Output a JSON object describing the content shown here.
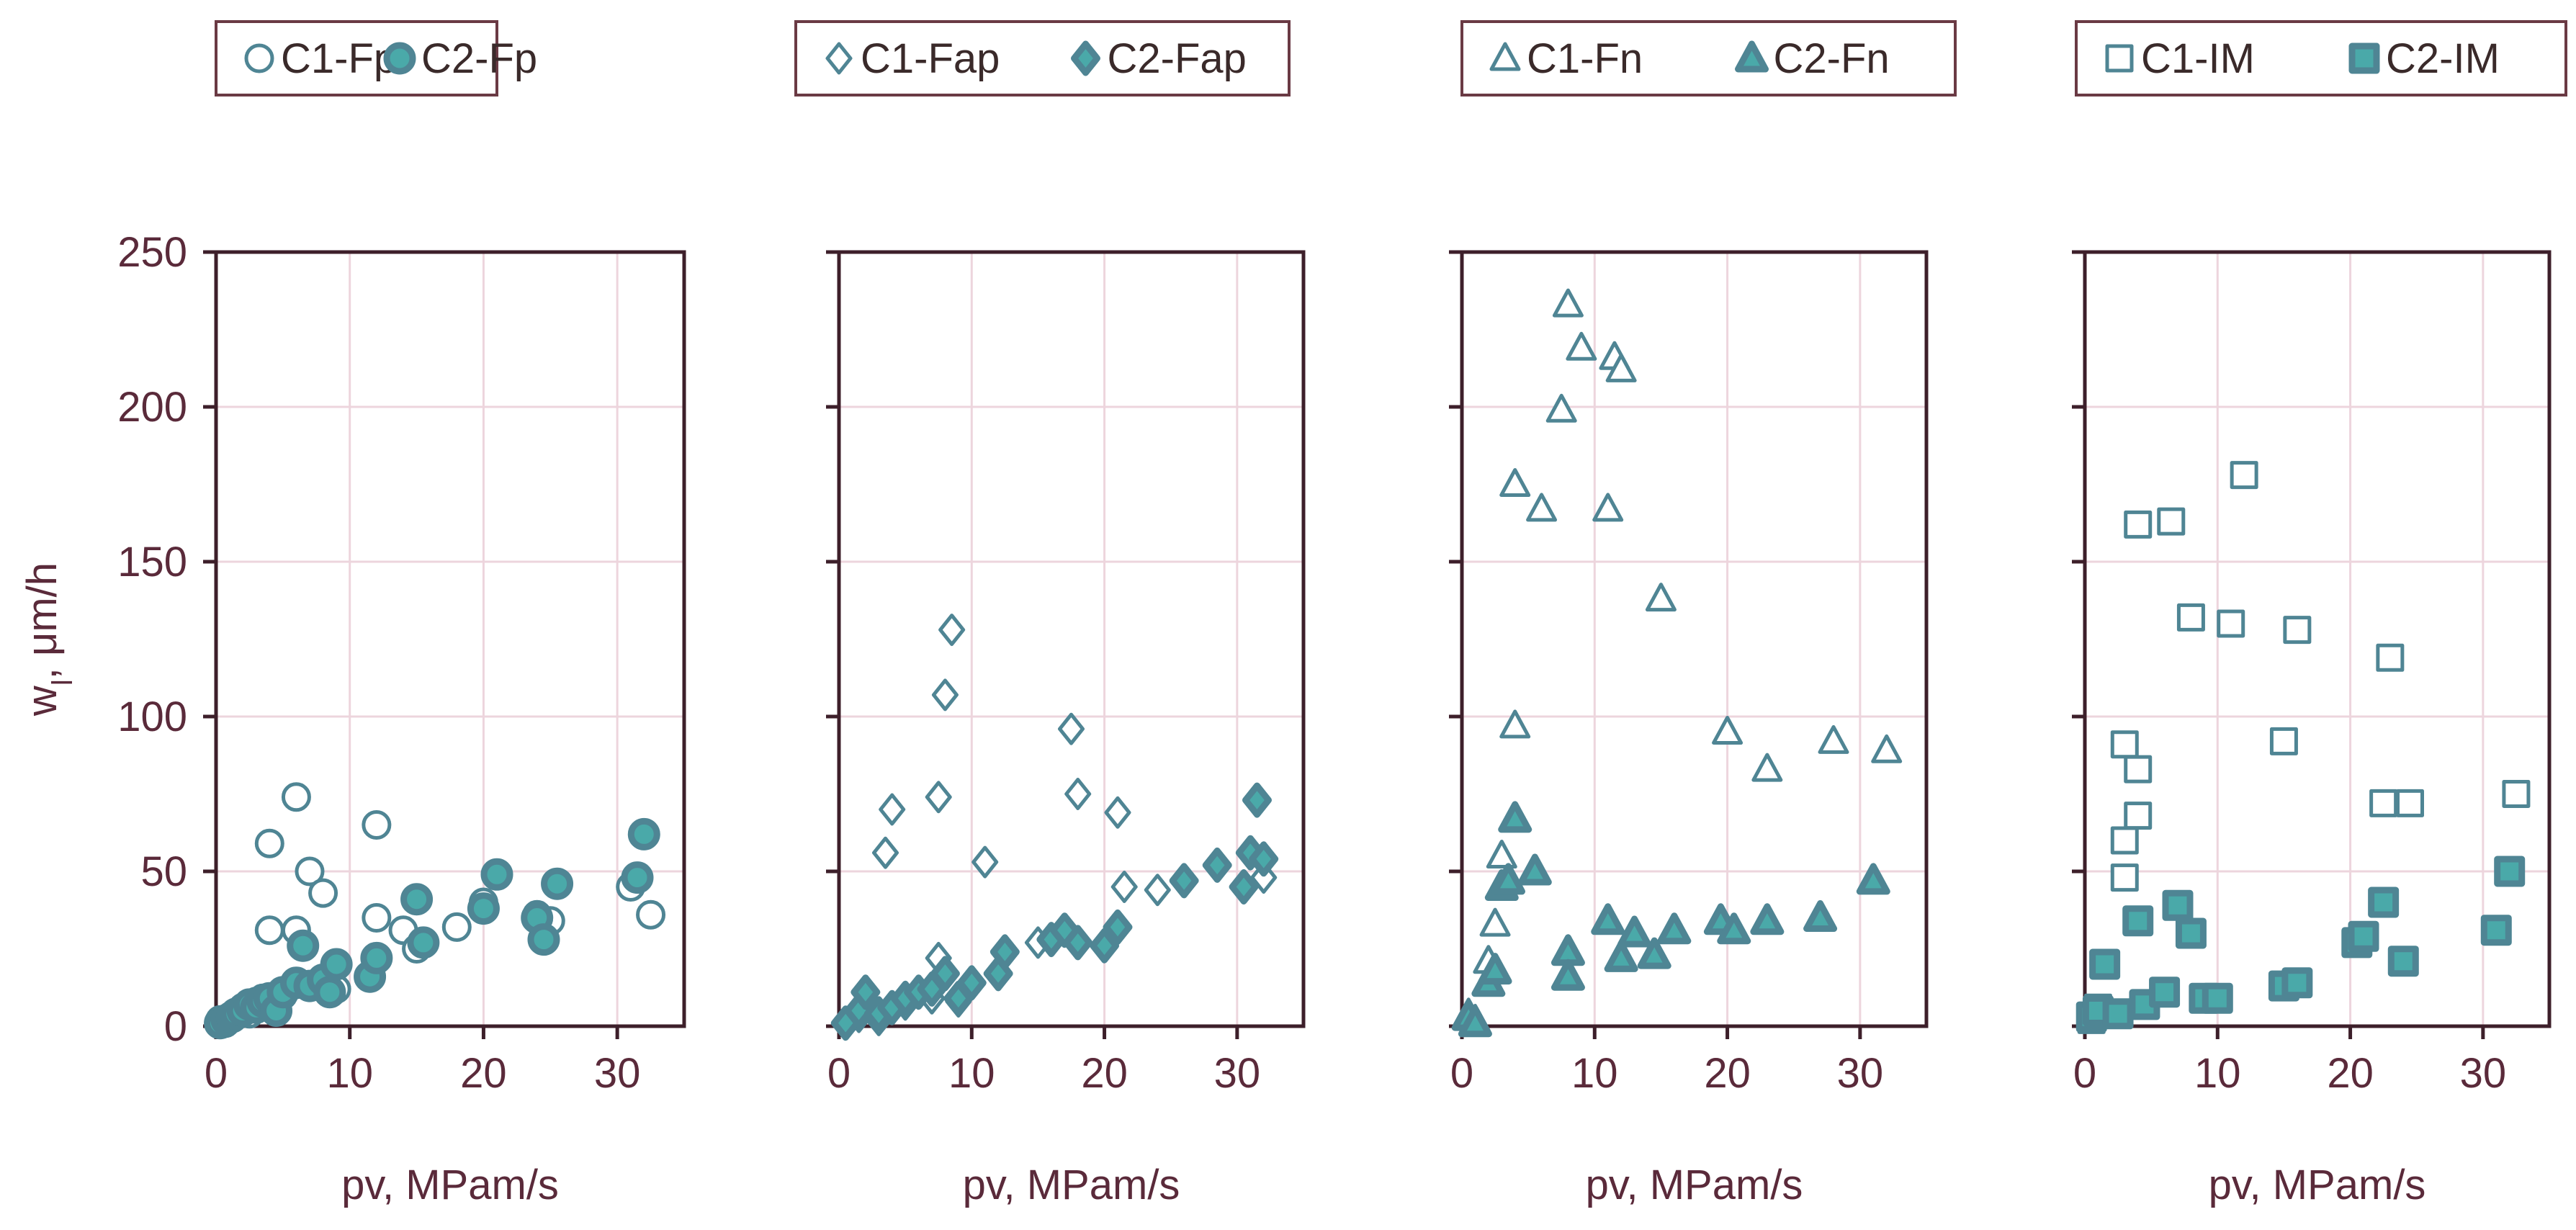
{
  "colors": {
    "marker_stroke": "#4f8594",
    "marker_fill": "#4aa9a9",
    "open_fill": "#ffffff",
    "frame": "#3d1f2a",
    "grid": "#edd5dd",
    "text": "#5a2a3a",
    "legend_border": "#6a3a44"
  },
  "chart_data": [
    {
      "type": "scatter",
      "marker": "circle",
      "xlabel": "pv, MPam/s",
      "ylabel": "w",
      "ylabel_sub": "l",
      "ylabel_suffix": ", μm/h",
      "xlim": [
        0,
        35
      ],
      "ylim": [
        0,
        250
      ],
      "xticks": [
        0,
        10,
        20,
        30
      ],
      "yticks": [
        0,
        50,
        100,
        150,
        200,
        250
      ],
      "xtick_labels": [
        "0",
        "10",
        "20",
        "30"
      ],
      "ytick_labels": [
        "0",
        "50",
        "100",
        "150",
        "200",
        "250"
      ],
      "legend": [
        "C1-Fp",
        "C2-Fp"
      ],
      "series": [
        {
          "name": "C1-Fp",
          "filled": false,
          "points": [
            [
              0.3,
              2
            ],
            [
              0.7,
              1
            ],
            [
              1.3,
              3
            ],
            [
              2,
              6
            ],
            [
              2.5,
              4
            ],
            [
              3,
              8
            ],
            [
              3.5,
              9
            ],
            [
              4,
              59
            ],
            [
              4,
              31
            ],
            [
              4.5,
              5
            ],
            [
              5,
              10
            ],
            [
              6,
              74
            ],
            [
              6,
              31
            ],
            [
              7,
              50
            ],
            [
              8,
              43
            ],
            [
              9,
              12
            ],
            [
              12,
              65
            ],
            [
              12,
              35
            ],
            [
              14,
              31
            ],
            [
              15,
              25
            ],
            [
              18,
              32
            ],
            [
              20,
              40
            ],
            [
              24,
              36
            ],
            [
              25,
              34
            ],
            [
              31,
              45
            ],
            [
              32.5,
              36
            ]
          ]
        },
        {
          "name": "C2-Fp",
          "filled": true,
          "points": [
            [
              0.3,
              1
            ],
            [
              0.8,
              2
            ],
            [
              1.2,
              3
            ],
            [
              1.5,
              4
            ],
            [
              2,
              5
            ],
            [
              2.5,
              7
            ],
            [
              3,
              6
            ],
            [
              3.5,
              8
            ],
            [
              4,
              9
            ],
            [
              4.5,
              5
            ],
            [
              5,
              11
            ],
            [
              6,
              14
            ],
            [
              6.5,
              26
            ],
            [
              7,
              13
            ],
            [
              8,
              15
            ],
            [
              8.5,
              11
            ],
            [
              9,
              20
            ],
            [
              11.5,
              16
            ],
            [
              12,
              22
            ],
            [
              15,
              41
            ],
            [
              15.5,
              27
            ],
            [
              20,
              38
            ],
            [
              21,
              49
            ],
            [
              24,
              35
            ],
            [
              24.5,
              28
            ],
            [
              25.5,
              46
            ],
            [
              31.5,
              48
            ],
            [
              32,
              62
            ]
          ]
        }
      ]
    },
    {
      "type": "scatter",
      "marker": "diamond",
      "xlabel": "pv, MPam/s",
      "xlim": [
        0,
        35
      ],
      "ylim": [
        0,
        250
      ],
      "xticks": [
        0,
        10,
        20,
        30
      ],
      "xtick_labels": [
        "0",
        "10",
        "20",
        "30"
      ],
      "legend": [
        "C1-Fap",
        "C2-Fap"
      ],
      "series": [
        {
          "name": "C1-Fap",
          "filled": false,
          "points": [
            [
              0.5,
              1
            ],
            [
              1.5,
              3
            ],
            [
              3,
              2
            ],
            [
              3.5,
              56
            ],
            [
              4,
              70
            ],
            [
              5,
              7
            ],
            [
              7,
              9
            ],
            [
              7.5,
              22
            ],
            [
              7.5,
              74
            ],
            [
              8,
              107
            ],
            [
              8.5,
              128
            ],
            [
              9,
              8
            ],
            [
              11,
              53
            ],
            [
              15,
              27
            ],
            [
              17.5,
              96
            ],
            [
              18,
              75
            ],
            [
              21,
              69
            ],
            [
              21.5,
              45
            ],
            [
              24,
              44
            ],
            [
              32,
              48
            ]
          ]
        },
        {
          "name": "C2-Fap",
          "filled": true,
          "points": [
            [
              0.5,
              1
            ],
            [
              1.5,
              5
            ],
            [
              2,
              11
            ],
            [
              3,
              4
            ],
            [
              4,
              6
            ],
            [
              5,
              9
            ],
            [
              6,
              11
            ],
            [
              7,
              12
            ],
            [
              8,
              17
            ],
            [
              9,
              9
            ],
            [
              10,
              14
            ],
            [
              12,
              17
            ],
            [
              12.5,
              24
            ],
            [
              16,
              28
            ],
            [
              17,
              31
            ],
            [
              18,
              27
            ],
            [
              20,
              26
            ],
            [
              21,
              32
            ],
            [
              26,
              47
            ],
            [
              28.5,
              52
            ],
            [
              30.5,
              45
            ],
            [
              31,
              56
            ],
            [
              31.5,
              73
            ],
            [
              32,
              54
            ]
          ]
        }
      ]
    },
    {
      "type": "scatter",
      "marker": "triangle",
      "xlabel": "pv, MPam/s",
      "xlim": [
        0,
        35
      ],
      "ylim": [
        0,
        250
      ],
      "xticks": [
        0,
        10,
        20,
        30
      ],
      "xtick_labels": [
        "0",
        "10",
        "20",
        "30"
      ],
      "legend": [
        "C1-Fn",
        "C2-Fn"
      ],
      "series": [
        {
          "name": "C1-Fn",
          "filled": false,
          "points": [
            [
              0.5,
              4
            ],
            [
              1,
              2
            ],
            [
              2,
              21
            ],
            [
              2.5,
              33
            ],
            [
              3,
              55
            ],
            [
              4,
              97
            ],
            [
              4,
              175
            ],
            [
              6,
              167
            ],
            [
              7.5,
              199
            ],
            [
              8,
              233
            ],
            [
              9,
              219
            ],
            [
              11,
              167
            ],
            [
              11.5,
              216
            ],
            [
              12,
              212
            ],
            [
              15,
              138
            ],
            [
              20,
              95
            ],
            [
              23,
              83
            ],
            [
              28,
              92
            ],
            [
              32,
              89
            ]
          ]
        },
        {
          "name": "C2-Fn",
          "filled": true,
          "points": [
            [
              0.5,
              3
            ],
            [
              1,
              1
            ],
            [
              2,
              14
            ],
            [
              2.5,
              18
            ],
            [
              3,
              45
            ],
            [
              3.5,
              47
            ],
            [
              4,
              67
            ],
            [
              5.5,
              50
            ],
            [
              8,
              24
            ],
            [
              8,
              16
            ],
            [
              11,
              34
            ],
            [
              12,
              22
            ],
            [
              13,
              30
            ],
            [
              14.5,
              23
            ],
            [
              16,
              31
            ],
            [
              19.5,
              34
            ],
            [
              20.5,
              31
            ],
            [
              23,
              34
            ],
            [
              27,
              35
            ],
            [
              31,
              47
            ]
          ]
        }
      ]
    },
    {
      "type": "scatter",
      "marker": "square",
      "xlabel": "pv, MPam/s",
      "xlim": [
        0,
        35
      ],
      "ylim": [
        0,
        250
      ],
      "xticks": [
        0,
        10,
        20,
        30
      ],
      "xtick_labels": [
        "0",
        "10",
        "20",
        "30"
      ],
      "legend": [
        "C1-IM",
        "C2-IM"
      ],
      "series": [
        {
          "name": "C1-IM",
          "filled": false,
          "points": [
            [
              0.5,
              2
            ],
            [
              1,
              6
            ],
            [
              2,
              4
            ],
            [
              3,
              48
            ],
            [
              3,
              60
            ],
            [
              3,
              91
            ],
            [
              4,
              83
            ],
            [
              4,
              68
            ],
            [
              4,
              162
            ],
            [
              6.5,
              163
            ],
            [
              8,
              132
            ],
            [
              11,
              130
            ],
            [
              12,
              178
            ],
            [
              15,
              92
            ],
            [
              16,
              128
            ],
            [
              22.5,
              72
            ],
            [
              23,
              119
            ],
            [
              24.5,
              72
            ],
            [
              32.5,
              75
            ]
          ]
        },
        {
          "name": "C2-IM",
          "filled": true,
          "points": [
            [
              0.5,
              3
            ],
            [
              1,
              5
            ],
            [
              1.5,
              20
            ],
            [
              2.5,
              4
            ],
            [
              4,
              34
            ],
            [
              4.5,
              7
            ],
            [
              6,
              11
            ],
            [
              7,
              39
            ],
            [
              8,
              30
            ],
            [
              9,
              9
            ],
            [
              10,
              9
            ],
            [
              15,
              13
            ],
            [
              16,
              14
            ],
            [
              20.5,
              27
            ],
            [
              21,
              29
            ],
            [
              22.5,
              40
            ],
            [
              24,
              21
            ],
            [
              31,
              31
            ],
            [
              32,
              50
            ]
          ]
        }
      ]
    }
  ]
}
